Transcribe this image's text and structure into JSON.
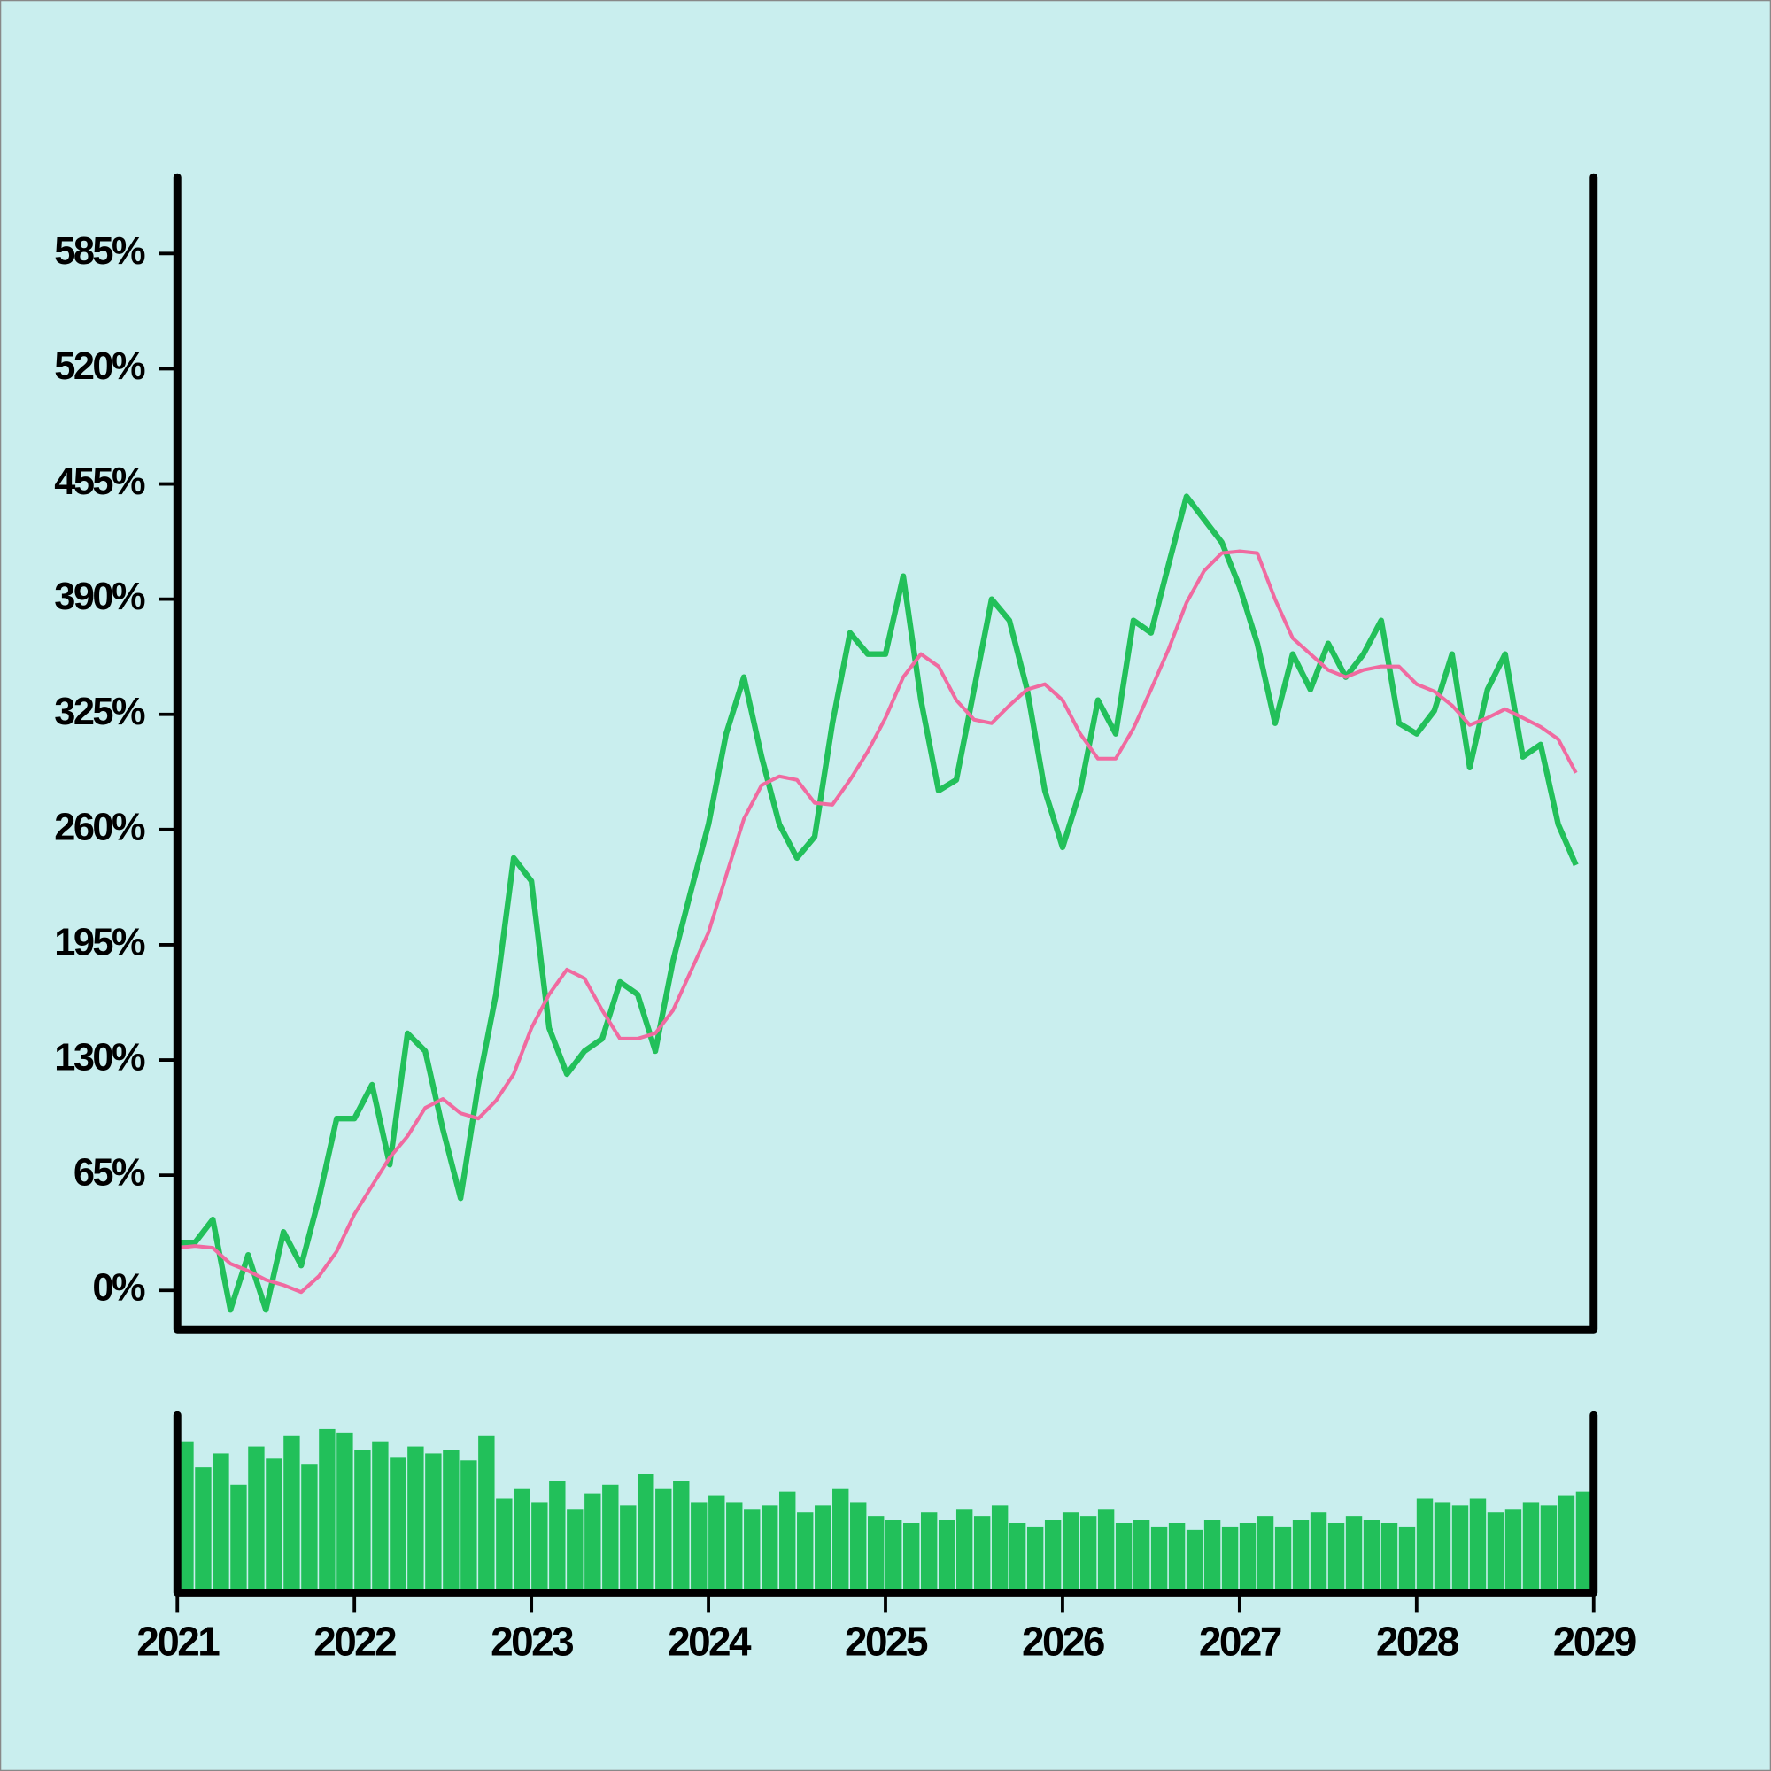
{
  "chart_data": [
    {
      "type": "line",
      "x": [
        2021,
        2021.1,
        2021.2,
        2021.3,
        2021.4,
        2021.5,
        2021.6,
        2021.7,
        2021.8,
        2021.9,
        2022,
        2022.1,
        2022.2,
        2022.3,
        2022.4,
        2022.5,
        2022.6,
        2022.7,
        2022.8,
        2022.9,
        2023,
        2023.1,
        2023.2,
        2023.3,
        2023.4,
        2023.5,
        2023.6,
        2023.7,
        2023.8,
        2023.9,
        2024,
        2024.1,
        2024.2,
        2024.3,
        2024.4,
        2024.5,
        2024.6,
        2024.7,
        2024.8,
        2024.9,
        2025,
        2025.1,
        2025.2,
        2025.3,
        2025.4,
        2025.5,
        2025.6,
        2025.7,
        2025.8,
        2025.9,
        2026,
        2026.1,
        2026.2,
        2026.3,
        2026.4,
        2026.5,
        2026.6,
        2026.7,
        2026.8,
        2026.9,
        2027,
        2027.1,
        2027.2,
        2027.3,
        2027.4,
        2027.5,
        2027.6,
        2027.7,
        2027.8,
        2027.9,
        2028,
        2028.1,
        2028.2,
        2028.3,
        2028.4,
        2028.5,
        2028.6,
        2028.7,
        2028.8,
        2028.9
      ],
      "series": [
        {
          "color": "#22c05a",
          "values": [
            27,
            27,
            40,
            -11,
            20,
            -11,
            33,
            14,
            52,
            97,
            97,
            116,
            71,
            145,
            135,
            91,
            52,
            116,
            167,
            244,
            231,
            148,
            122,
            135,
            142,
            174,
            167,
            135,
            186,
            225,
            263,
            314,
            346,
            301,
            263,
            244,
            256,
            320,
            371,
            359,
            359,
            403,
            333,
            282,
            288,
            339,
            390,
            378,
            339,
            282,
            250,
            282,
            333,
            314,
            378,
            371,
            410,
            448,
            435,
            422,
            397,
            365,
            320,
            359,
            339,
            365,
            346,
            359,
            378,
            320,
            314,
            327,
            359,
            295,
            339,
            359,
            301,
            308,
            263,
            240
          ]
        },
        {
          "color": "#f06aa0",
          "values": [
            24,
            25,
            24,
            15,
            11,
            6,
            3,
            -1,
            8,
            22,
            43,
            59,
            75,
            87,
            103,
            108,
            100,
            97,
            107,
            122,
            148,
            167,
            181,
            176,
            158,
            142,
            142,
            145,
            158,
            180,
            202,
            234,
            266,
            285,
            290,
            288,
            275,
            274,
            288,
            304,
            323,
            346,
            359,
            352,
            333,
            322,
            320,
            330,
            339,
            342,
            333,
            314,
            300,
            300,
            317,
            339,
            362,
            388,
            406,
            416,
            417,
            416,
            390,
            368,
            359,
            350,
            346,
            350,
            352,
            352,
            342,
            338,
            330,
            319,
            323,
            328,
            323,
            318,
            311,
            292
          ]
        }
      ],
      "xlim": [
        2021,
        2029
      ],
      "ylim": [
        -22,
        628
      ],
      "yticks": [
        {
          "value": 0,
          "label": "0%"
        },
        {
          "value": 65,
          "label": "65%"
        },
        {
          "value": 130,
          "label": "130%"
        },
        {
          "value": 195,
          "label": "195%"
        },
        {
          "value": 260,
          "label": "260%"
        },
        {
          "value": 325,
          "label": "325%"
        },
        {
          "value": 390,
          "label": "390%"
        },
        {
          "value": 455,
          "label": "455%"
        },
        {
          "value": 520,
          "label": "520%"
        },
        {
          "value": 585,
          "label": "585%"
        }
      ]
    },
    {
      "type": "bar",
      "color": "#22c05a",
      "values": [
        85,
        70,
        78,
        60,
        82,
        75,
        88,
        72,
        92,
        90,
        80,
        85,
        76,
        82,
        78,
        80,
        74,
        88,
        52,
        58,
        50,
        62,
        46,
        55,
        60,
        48,
        66,
        58,
        62,
        50,
        54,
        50,
        46,
        48,
        56,
        44,
        48,
        58,
        50,
        42,
        40,
        38,
        44,
        40,
        46,
        42,
        48,
        38,
        36,
        40,
        44,
        42,
        46,
        38,
        40,
        36,
        38,
        34,
        40,
        36,
        38,
        42,
        36,
        40,
        44,
        38,
        42,
        40,
        38,
        36,
        52,
        50,
        48,
        52,
        44,
        46,
        50,
        48,
        54,
        56
      ],
      "xlim": [
        2021,
        2029
      ],
      "ylim": [
        0,
        100
      ],
      "xticks": [
        2021,
        2022,
        2023,
        2024,
        2025,
        2026,
        2027,
        2028,
        2029
      ]
    }
  ]
}
